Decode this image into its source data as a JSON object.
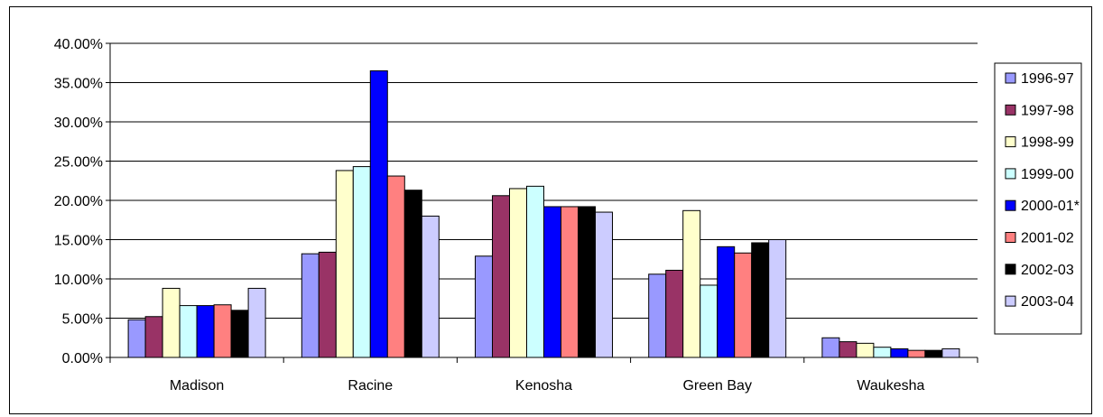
{
  "chart_data": {
    "type": "bar",
    "title": "",
    "xlabel": "",
    "ylabel": "",
    "ylim": [
      0,
      0.4
    ],
    "y_tick_values": [
      0,
      0.05,
      0.1,
      0.15,
      0.2,
      0.25,
      0.3,
      0.35,
      0.4
    ],
    "y_tick_labels": [
      "0.00%",
      "5.00%",
      "10.00%",
      "15.00%",
      "20.00%",
      "25.00%",
      "30.00%",
      "35.00%",
      "40.00%"
    ],
    "grid": true,
    "legend_position": "right",
    "categories": [
      "Madison",
      "Racine",
      "Kenosha",
      "Green Bay",
      "Waukesha"
    ],
    "series": [
      {
        "name": "1996-97",
        "color": "#9999ff",
        "values": [
          0.048,
          0.132,
          0.129,
          0.106,
          0.025
        ]
      },
      {
        "name": "1997-98",
        "color": "#993366",
        "values": [
          0.052,
          0.134,
          0.206,
          0.111,
          0.02
        ]
      },
      {
        "name": "1998-99",
        "color": "#ffffcc",
        "values": [
          0.088,
          0.238,
          0.215,
          0.187,
          0.018
        ]
      },
      {
        "name": "1999-00",
        "color": "#ccffff",
        "values": [
          0.066,
          0.243,
          0.218,
          0.092,
          0.013
        ]
      },
      {
        "name": "2000-01*",
        "color": "#0000ff",
        "values": [
          0.066,
          0.365,
          0.192,
          0.141,
          0.011
        ]
      },
      {
        "name": "2001-02",
        "color": "#ff8080",
        "values": [
          0.067,
          0.231,
          0.192,
          0.133,
          0.009
        ]
      },
      {
        "name": "2002-03",
        "color": "#000000",
        "values": [
          0.06,
          0.213,
          0.192,
          0.146,
          0.009
        ]
      },
      {
        "name": "2003-04",
        "color": "#ccccff",
        "values": [
          0.088,
          0.18,
          0.185,
          0.15,
          0.011
        ]
      }
    ]
  }
}
